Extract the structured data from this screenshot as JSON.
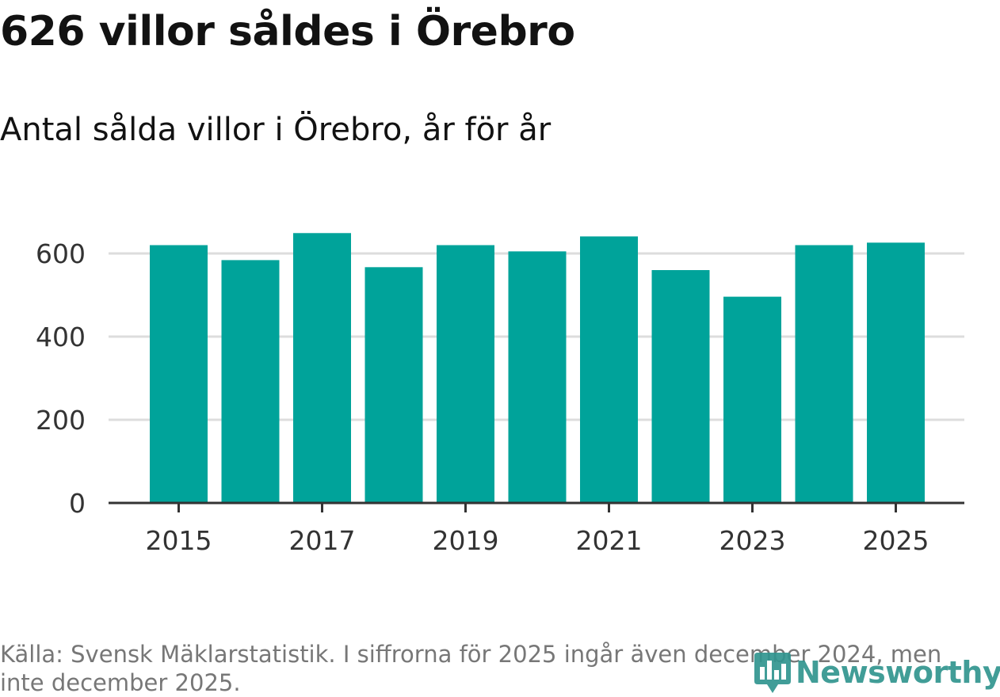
{
  "title": "626 villor såldes i Örebro",
  "subtitle": "Antal sålda villor i Örebro, år för år",
  "footnote": "Källa: Svensk Mäklarstatistik. I siffrorna för 2025 ingår även december 2024, men inte december 2025.",
  "logo": {
    "text": "Newsworthy",
    "icon": "bar-chart-location-icon",
    "color": "#31958f"
  },
  "colors": {
    "bar": "#00a39a",
    "grid": "#dddddd",
    "axis": "#333333",
    "text": "#333333"
  },
  "chart_data": {
    "type": "bar",
    "title": "626 villor såldes i Örebro",
    "subtitle": "Antal sålda villor i Örebro, år för år",
    "categories": [
      2015,
      2016,
      2017,
      2018,
      2019,
      2020,
      2021,
      2022,
      2023,
      2024,
      2025
    ],
    "values": [
      620,
      584,
      649,
      567,
      620,
      605,
      641,
      560,
      496,
      620,
      626
    ],
    "xlabel": "",
    "ylabel": "",
    "ylim": [
      0,
      700
    ],
    "yticks": [
      0,
      200,
      400,
      600
    ],
    "xticks": [
      2015,
      2017,
      2019,
      2021,
      2023,
      2025
    ],
    "grid": true,
    "legend": "none"
  }
}
